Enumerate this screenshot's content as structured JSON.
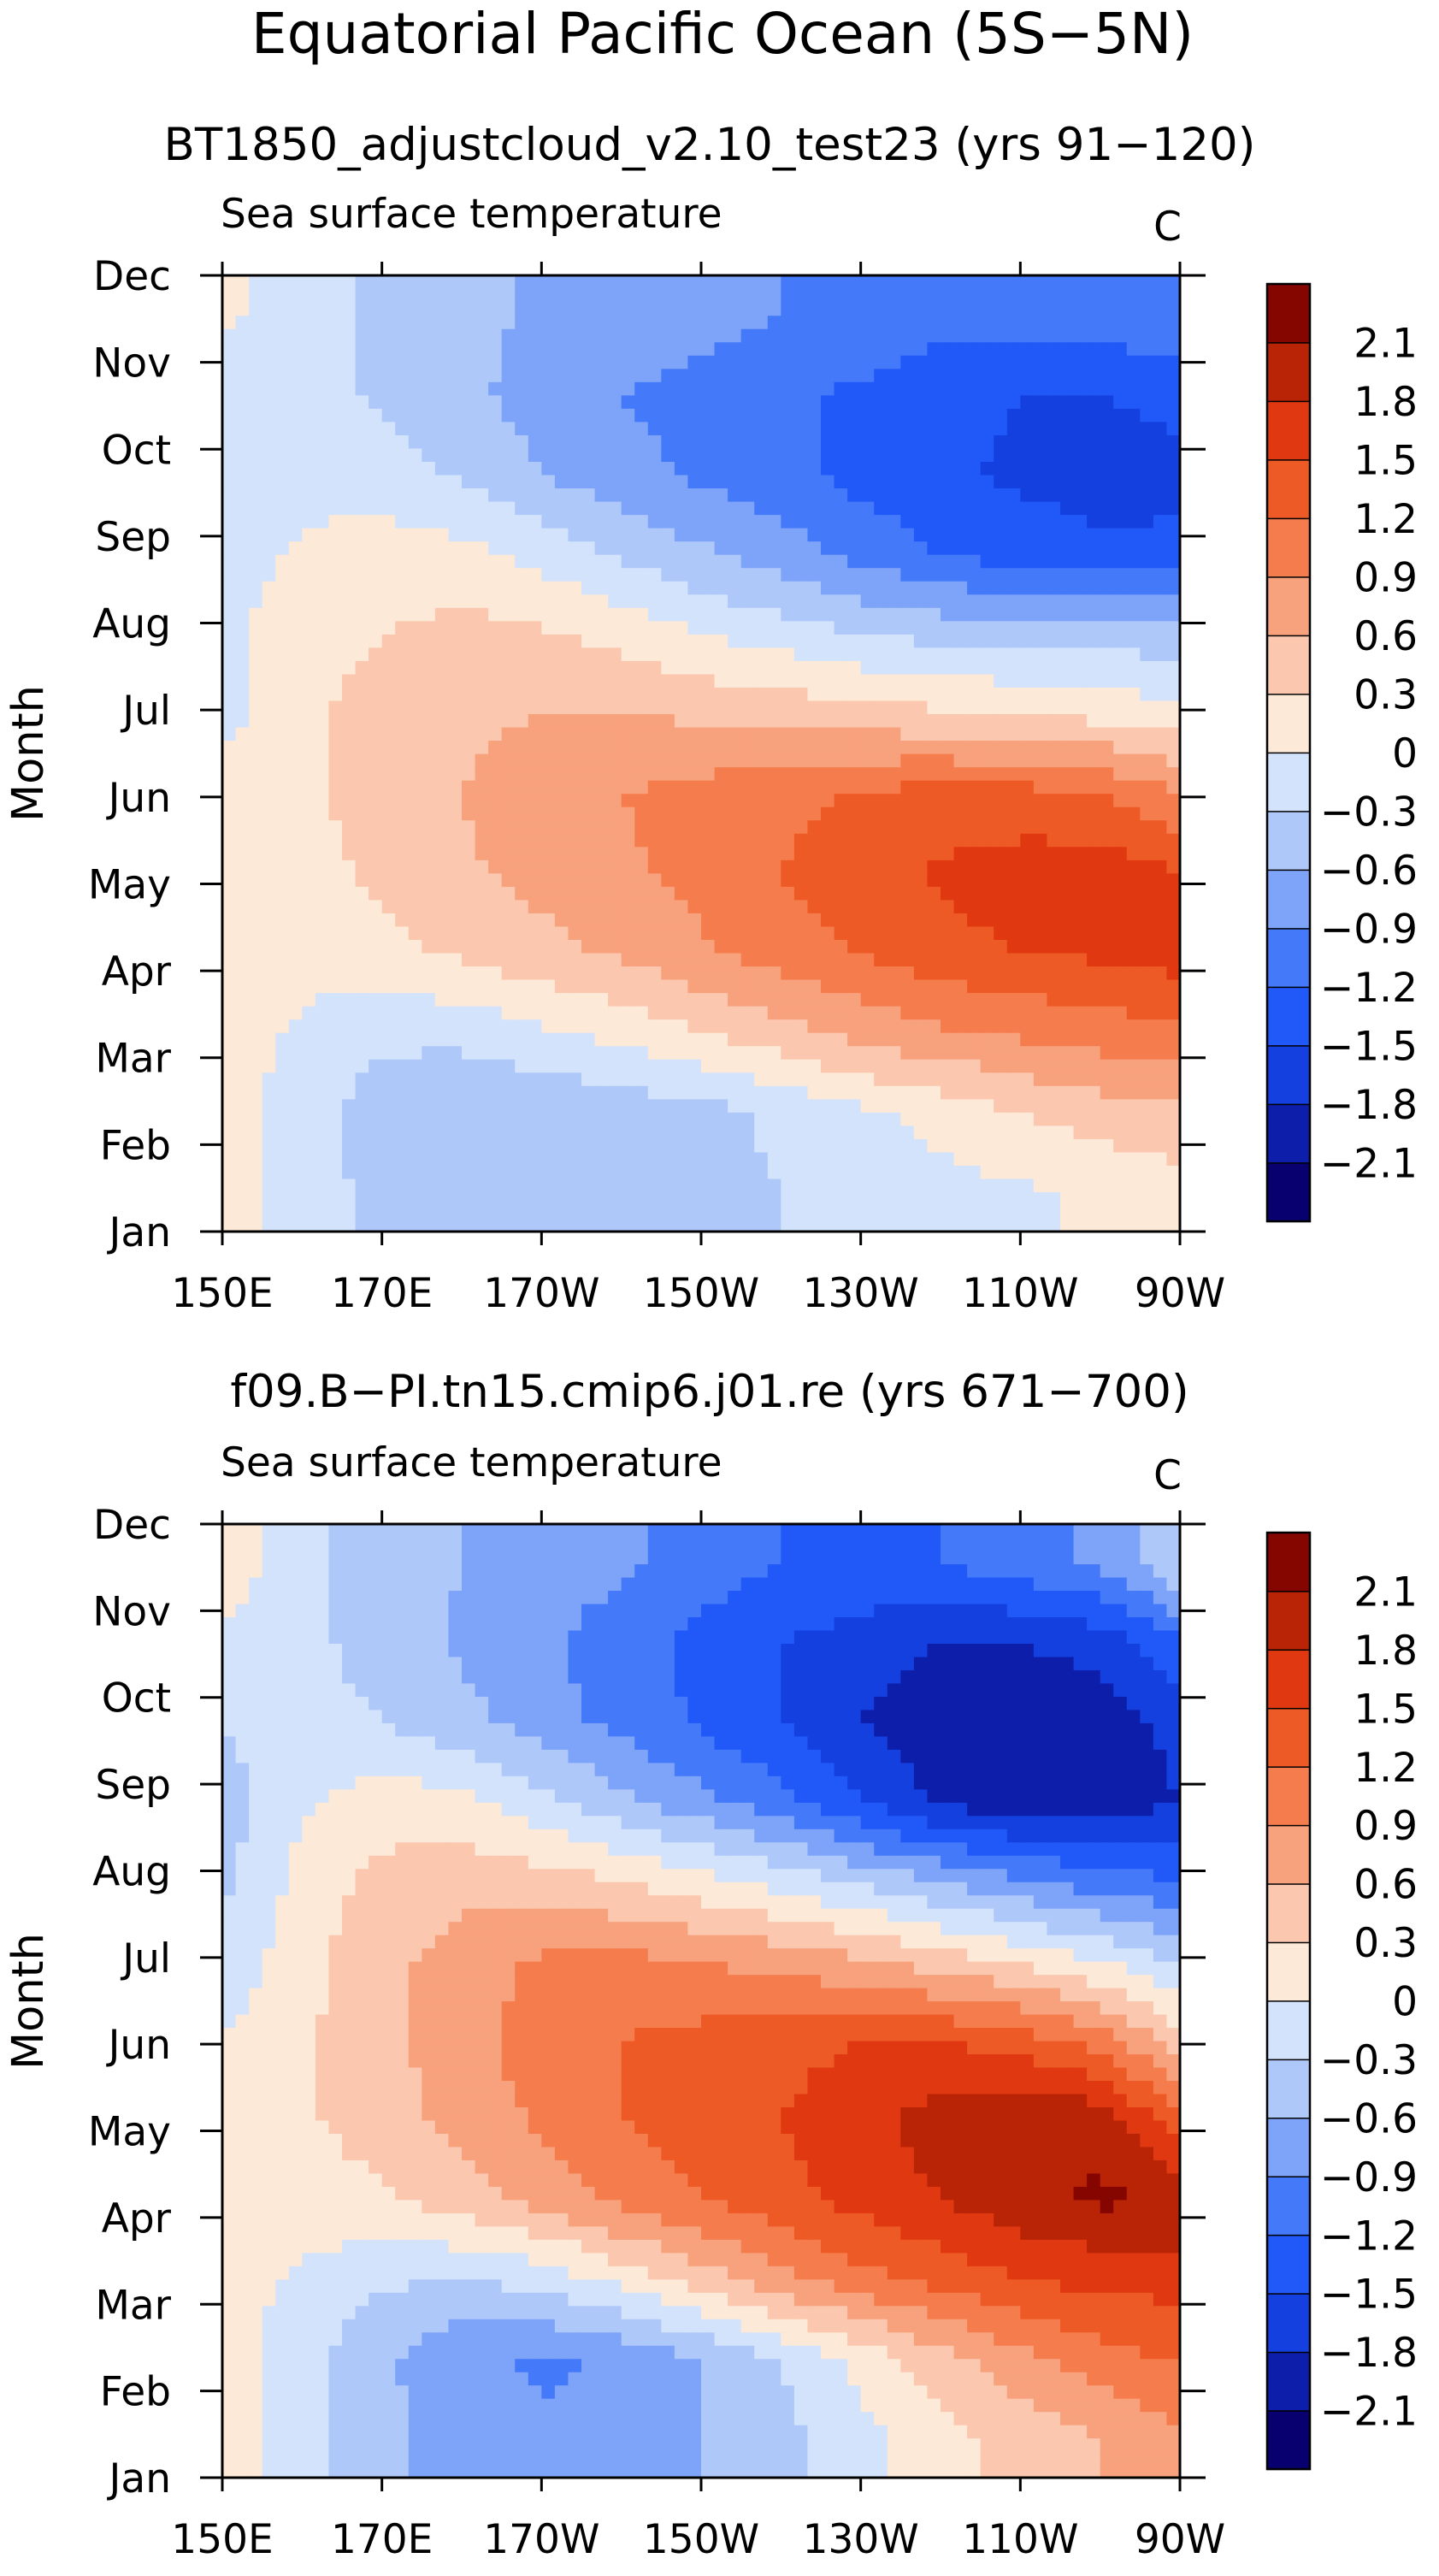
{
  "title": "Equatorial Pacific Ocean (5S−5N)",
  "chart_data": [
    {
      "type": "heatmap",
      "subtitle": "BT1850_adjustcloud_v2.10_test23 (yrs 91−120)",
      "field": "Sea surface temperature",
      "units": "C",
      "ylabel": "Month",
      "x_ticks": [
        "150E",
        "170E",
        "170W",
        "150W",
        "130W",
        "110W",
        "90W"
      ],
      "y_ticks": [
        "Jan",
        "Feb",
        "Mar",
        "Apr",
        "May",
        "Jun",
        "Jul",
        "Aug",
        "Sep",
        "Oct",
        "Nov",
        "Dec"
      ],
      "x_lon": [
        150,
        160,
        170,
        180,
        190,
        200,
        210,
        220,
        230,
        240,
        250,
        260,
        270
      ],
      "values": [
        [
          0.2,
          -0.15,
          -0.4,
          -0.55,
          -0.5,
          -0.45,
          -0.35,
          -0.3,
          -0.2,
          -0.1,
          -0.05,
          0.05,
          0.15
        ],
        [
          0.15,
          -0.15,
          -0.45,
          -0.6,
          -0.55,
          -0.5,
          -0.4,
          -0.25,
          -0.05,
          0.1,
          0.3,
          0.45,
          0.55
        ],
        [
          0.15,
          -0.05,
          -0.25,
          -0.2,
          -0.05,
          0.1,
          0.3,
          0.5,
          0.7,
          0.85,
          0.95,
          1.05,
          1.1
        ],
        [
          0.2,
          0.1,
          0.2,
          0.35,
          0.5,
          0.65,
          0.85,
          1.05,
          1.2,
          1.4,
          1.5,
          1.55,
          1.65
        ],
        [
          0.2,
          0.2,
          0.35,
          0.55,
          0.7,
          0.85,
          1.0,
          1.2,
          1.4,
          1.55,
          1.65,
          1.7,
          1.5
        ],
        [
          0.1,
          0.25,
          0.4,
          0.6,
          0.75,
          0.9,
          1.0,
          1.1,
          1.25,
          1.3,
          1.3,
          1.2,
          0.9
        ],
        [
          -0.1,
          0.25,
          0.4,
          0.55,
          0.6,
          0.6,
          0.55,
          0.5,
          0.4,
          0.35,
          0.3,
          0.2,
          0.1
        ],
        [
          -0.1,
          0.2,
          0.3,
          0.4,
          0.35,
          0.2,
          0.0,
          -0.15,
          -0.3,
          -0.4,
          -0.45,
          -0.45,
          -0.45
        ],
        [
          -0.15,
          0.05,
          0.15,
          0.1,
          -0.1,
          -0.35,
          -0.55,
          -0.75,
          -1.0,
          -1.2,
          -1.35,
          -1.45,
          -1.45
        ],
        [
          -0.2,
          -0.1,
          -0.15,
          -0.35,
          -0.6,
          -0.8,
          -0.95,
          -1.1,
          -1.3,
          -1.45,
          -1.55,
          -1.6,
          -1.55
        ],
        [
          -0.2,
          -0.15,
          -0.35,
          -0.5,
          -0.75,
          -0.9,
          -1.0,
          -1.15,
          -1.25,
          -1.4,
          -1.5,
          -1.5,
          -1.45
        ],
        [
          0.05,
          -0.15,
          -0.4,
          -0.5,
          -0.65,
          -0.75,
          -0.8,
          -0.9,
          -1.0,
          -1.1,
          -1.1,
          -1.05,
          -0.9
        ]
      ],
      "colorbar": {
        "labels": [
          "2.1",
          "1.8",
          "1.5",
          "1.2",
          "0.9",
          "0.6",
          "0.3",
          "0",
          "−0.3",
          "−0.6",
          "−0.9",
          "−1.2",
          "−1.5",
          "−1.8",
          "−2.1"
        ],
        "levels": [
          -2.1,
          -1.8,
          -1.5,
          -1.2,
          -0.9,
          -0.6,
          -0.3,
          0,
          0.3,
          0.6,
          0.9,
          1.2,
          1.5,
          1.8,
          2.1
        ],
        "colors": [
          "#08006f",
          "#0c1eaa",
          "#1540e0",
          "#2159f9",
          "#4479f9",
          "#7ea4f9",
          "#afc8fa",
          "#d3e3fb",
          "#fde9d8",
          "#fbc7ae",
          "#f8a17d",
          "#f57d4d",
          "#ee5a25",
          "#e03810",
          "#b82405",
          "#850500"
        ]
      }
    },
    {
      "type": "heatmap",
      "subtitle": "f09.B−PI.tn15.cmip6.j01.re (yrs 671−700)",
      "field": "Sea surface temperature",
      "units": "C",
      "ylabel": "Month",
      "x_ticks": [
        "150E",
        "170E",
        "170W",
        "150W",
        "130W",
        "110W",
        "90W"
      ],
      "y_ticks": [
        "Jan",
        "Feb",
        "Mar",
        "Apr",
        "May",
        "Jun",
        "Jul",
        "Aug",
        "Sep",
        "Oct",
        "Nov",
        "Dec"
      ],
      "x_lon": [
        150,
        160,
        170,
        180,
        190,
        200,
        210,
        220,
        230,
        240,
        250,
        260,
        270
      ],
      "values": [
        [
          0.15,
          -0.2,
          -0.5,
          -0.75,
          -0.85,
          -0.8,
          -0.6,
          -0.4,
          -0.1,
          0.2,
          0.4,
          0.6,
          0.85
        ],
        [
          0.15,
          -0.2,
          -0.55,
          -0.85,
          -0.95,
          -0.85,
          -0.6,
          -0.3,
          0.1,
          0.5,
          0.8,
          1.05,
          1.25
        ],
        [
          0.15,
          -0.05,
          -0.25,
          -0.3,
          -0.2,
          0.1,
          0.45,
          0.8,
          1.1,
          1.3,
          1.5,
          1.6,
          1.6
        ],
        [
          0.15,
          0.15,
          0.25,
          0.45,
          0.7,
          1.0,
          1.2,
          1.4,
          1.6,
          1.8,
          2.0,
          2.15,
          2.1
        ],
        [
          0.15,
          0.25,
          0.45,
          0.7,
          0.95,
          1.2,
          1.35,
          1.5,
          1.7,
          1.95,
          2.1,
          2.0,
          1.3
        ],
        [
          0.0,
          0.25,
          0.5,
          0.8,
          1.05,
          1.2,
          1.3,
          1.4,
          1.5,
          1.5,
          1.35,
          1.1,
          0.4
        ],
        [
          -0.25,
          0.2,
          0.5,
          0.75,
          0.95,
          1.0,
          0.9,
          0.8,
          0.65,
          0.45,
          0.25,
          0.0,
          -0.3
        ],
        [
          -0.35,
          0.1,
          0.4,
          0.5,
          0.45,
          0.3,
          0.1,
          -0.1,
          -0.35,
          -0.6,
          -0.85,
          -1.05,
          -1.2
        ],
        [
          -0.45,
          -0.05,
          0.15,
          0.1,
          -0.2,
          -0.5,
          -0.8,
          -1.1,
          -1.5,
          -1.85,
          -2.0,
          -2.0,
          -1.8
        ],
        [
          -0.3,
          -0.15,
          -0.3,
          -0.5,
          -0.75,
          -1.0,
          -1.25,
          -1.5,
          -1.8,
          -2.0,
          -2.0,
          -2.0,
          -1.7
        ],
        [
          -0.1,
          -0.2,
          -0.45,
          -0.65,
          -0.85,
          -1.05,
          -1.3,
          -1.5,
          -1.65,
          -1.8,
          -1.8,
          -1.7,
          -1.25
        ],
        [
          0.2,
          -0.2,
          -0.45,
          -0.6,
          -0.75,
          -0.85,
          -1.05,
          -1.2,
          -1.25,
          -1.2,
          -1.05,
          -0.85,
          -0.3
        ]
      ],
      "colorbar": {
        "labels": [
          "2.1",
          "1.8",
          "1.5",
          "1.2",
          "0.9",
          "0.6",
          "0.3",
          "0",
          "−0.3",
          "−0.6",
          "−0.9",
          "−1.2",
          "−1.5",
          "−1.8",
          "−2.1"
        ],
        "levels": [
          -2.1,
          -1.8,
          -1.5,
          -1.2,
          -0.9,
          -0.6,
          -0.3,
          0,
          0.3,
          0.6,
          0.9,
          1.2,
          1.5,
          1.8,
          2.1
        ],
        "colors": [
          "#08006f",
          "#0c1eaa",
          "#1540e0",
          "#2159f9",
          "#4479f9",
          "#7ea4f9",
          "#afc8fa",
          "#d3e3fb",
          "#fde9d8",
          "#fbc7ae",
          "#f8a17d",
          "#f57d4d",
          "#ee5a25",
          "#e03810",
          "#b82405",
          "#850500"
        ]
      }
    }
  ]
}
